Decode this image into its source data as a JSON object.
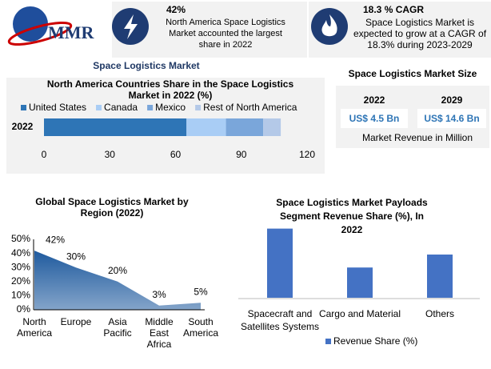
{
  "logo": "MMR",
  "highlights": [
    {
      "value": "42%",
      "text": "North America Space Logistics Market accounted the largest share in 2022"
    },
    {
      "value": "18.3 % CAGR",
      "text": "Space Logistics Market is expected to grow at a CAGR of 18.3% during 2023-2029"
    }
  ],
  "market_title": "Space Logistics Market",
  "market_size": {
    "title": "Space Logistics Market Size",
    "years": [
      "2022",
      "2029"
    ],
    "values": [
      "US$ 4.5 Bn",
      "US$ 14.6 Bn"
    ],
    "note": "Market Revenue in Million"
  },
  "chart_data": [
    {
      "type": "stacked-hbar",
      "title": "North America Countries Share in the Space Logistics Market in 2022 (%)",
      "categories": [
        "2022"
      ],
      "series": [
        {
          "name": "United States",
          "color": "#2e75b6",
          "values": [
            65
          ]
        },
        {
          "name": "Canada",
          "color": "#a9cdf5",
          "values": [
            18
          ]
        },
        {
          "name": "Mexico",
          "color": "#7aa6da",
          "values": [
            17
          ]
        },
        {
          "name": "Rest of North America",
          "color": "#b4c9e8",
          "values": [
            8
          ]
        }
      ],
      "xlim": [
        0,
        120
      ],
      "xticks": [
        0,
        30,
        60,
        90,
        120
      ],
      "grid": false
    },
    {
      "type": "area",
      "title": "Global Space Logistics Market by Region (2022)",
      "categories": [
        "North America",
        "Europe",
        "Asia Pacific",
        "Middle East Africa",
        "South America"
      ],
      "values": [
        42,
        30,
        20,
        3,
        5
      ],
      "value_labels": [
        "42%",
        "30%",
        "20%",
        "3%",
        "5%"
      ],
      "color": "#1f5a9e",
      "ylim": [
        0,
        50
      ],
      "yticks": [
        {
          "value": 0,
          "label": "0%"
        },
        {
          "value": 10,
          "label": "10%"
        },
        {
          "value": 20,
          "label": "20%"
        },
        {
          "value": 30,
          "label": "30%"
        },
        {
          "value": 40,
          "label": "40%"
        },
        {
          "value": 50,
          "label": "50%"
        }
      ]
    },
    {
      "type": "bar",
      "title": "Space Logistics Market Payloads Segment Revenue Share (%), In 2022",
      "categories": [
        "Spacecraft and Satellites Systems",
        "Cargo and Material",
        "Others"
      ],
      "series": [
        {
          "name": "Revenue Share (%)",
          "color": "#4472c4",
          "values": [
            48,
            21,
            30
          ]
        }
      ]
    }
  ]
}
